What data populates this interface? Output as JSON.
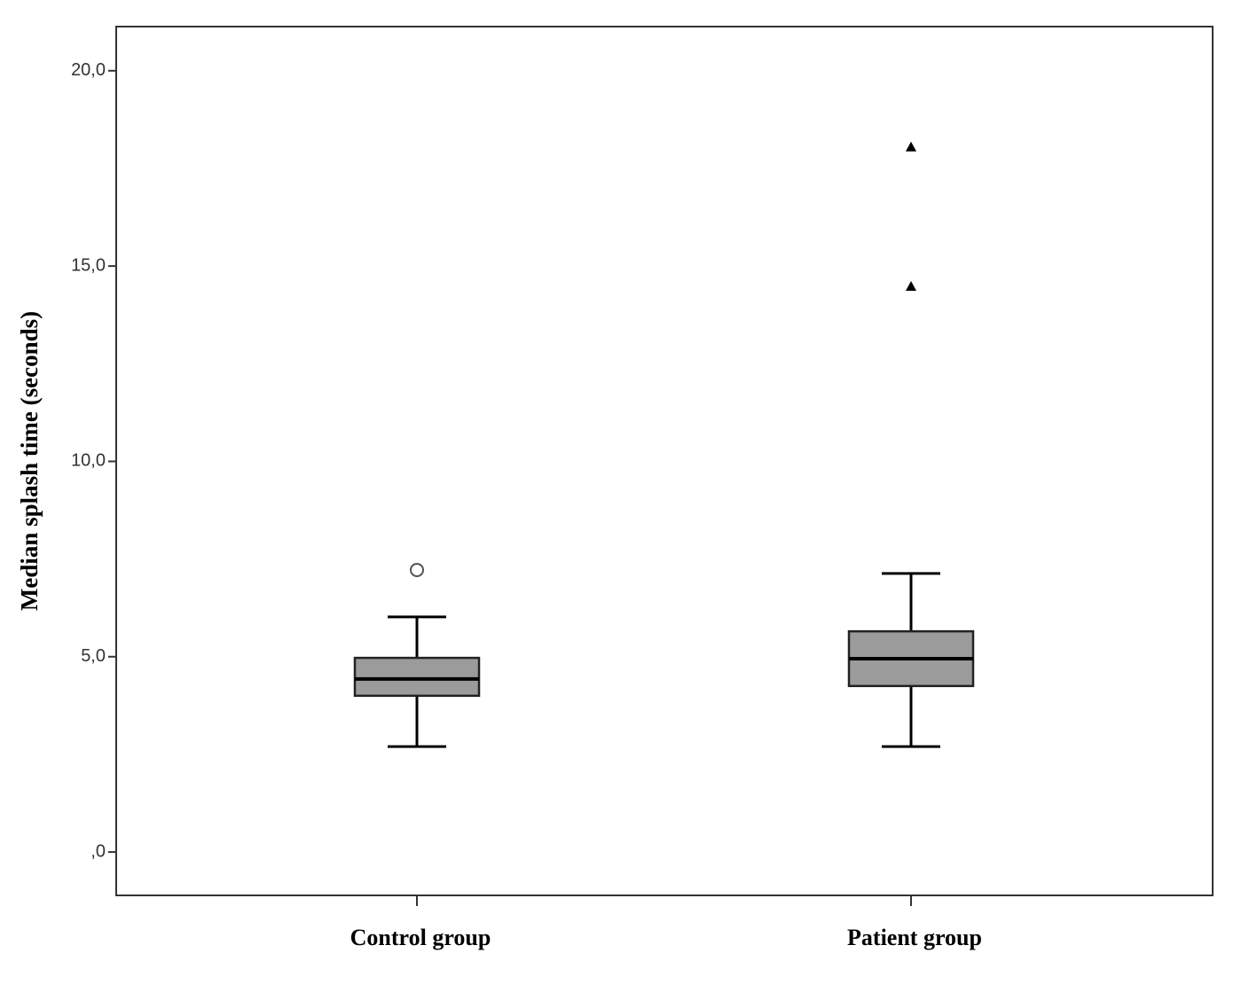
{
  "chart_data": {
    "type": "box",
    "y_label": "Median splash time (seconds)",
    "categories": [
      "Control group",
      "Patient group"
    ],
    "boxes": [
      {
        "low": 2.7,
        "q1": 4.0,
        "median": 4.43,
        "q3": 4.97,
        "high": 6.02,
        "outliers": [
          7.22
        ],
        "extremes": []
      },
      {
        "low": 2.7,
        "q1": 4.25,
        "median": 4.95,
        "q3": 5.65,
        "high": 7.13,
        "outliers": [],
        "extremes": [
          14.48,
          18.05
        ]
      }
    ],
    "box_color": "#9b9b9b",
    "ylim": [
      -1.11,
      21.13
    ],
    "yticks": [
      {
        "value": 0,
        "label": ",0"
      },
      {
        "value": 5,
        "label": "5,0"
      },
      {
        "value": 10,
        "label": "10,0"
      },
      {
        "value": 15,
        "label": "15,0"
      },
      {
        "value": 20,
        "label": "20,0"
      }
    ]
  }
}
